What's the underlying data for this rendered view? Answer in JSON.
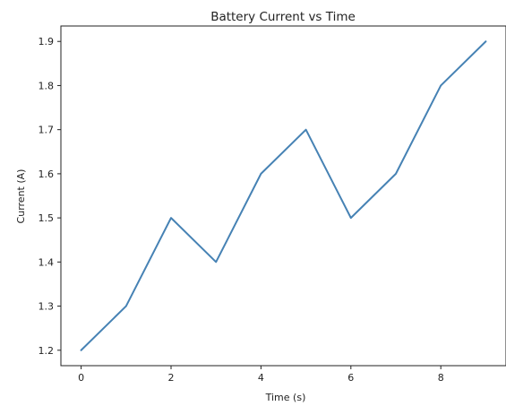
{
  "chart_data": {
    "type": "line",
    "title": "Battery Current vs Time",
    "xlabel": "Time (s)",
    "ylabel": "Current (A)",
    "x": [
      0,
      1,
      2,
      3,
      4,
      5,
      6,
      7,
      8,
      9
    ],
    "series": [
      {
        "values": [
          1.2,
          1.3,
          1.5,
          1.4,
          1.6,
          1.7,
          1.5,
          1.6,
          1.8,
          1.9
        ],
        "color": "#4682b4"
      }
    ],
    "xlim": [
      -0.45,
      9.45
    ],
    "ylim": [
      1.165,
      1.935
    ],
    "xticks": [
      0,
      2,
      4,
      6,
      8
    ],
    "xtick_labels": [
      "0",
      "2",
      "4",
      "6",
      "8"
    ],
    "yticks": [
      1.2,
      1.3,
      1.4,
      1.5,
      1.6,
      1.7,
      1.8,
      1.9
    ],
    "ytick_labels": [
      "1.2",
      "1.3",
      "1.4",
      "1.5",
      "1.6",
      "1.7",
      "1.8",
      "1.9"
    ],
    "grid": false,
    "legend": "none"
  }
}
